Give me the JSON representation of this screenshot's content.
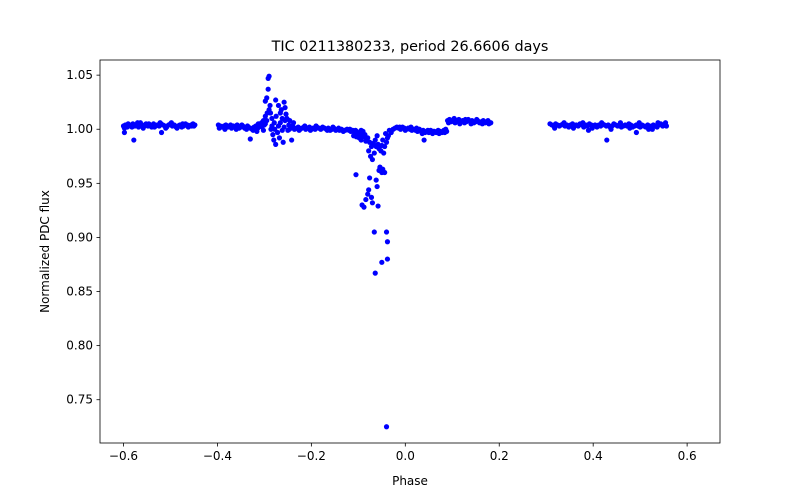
{
  "chart_data": {
    "type": "scatter",
    "title": "TIC 0211380233, period 26.6606 days",
    "xlabel": "Phase",
    "ylabel": "Normalized PDC flux",
    "xlim": [
      -0.65,
      0.67
    ],
    "ylim": [
      0.71,
      1.064
    ],
    "grid": false,
    "marker_color": "#0000ff",
    "x_ticks": [
      {
        "value": -0.6,
        "label": "−0.6"
      },
      {
        "value": -0.4,
        "label": "−0.4"
      },
      {
        "value": -0.2,
        "label": "−0.2"
      },
      {
        "value": 0.0,
        "label": "0.0"
      },
      {
        "value": 0.2,
        "label": "0.2"
      },
      {
        "value": 0.4,
        "label": "0.4"
      },
      {
        "value": 0.6,
        "label": "0.6"
      }
    ],
    "y_ticks": [
      {
        "value": 0.75,
        "label": "0.75"
      },
      {
        "value": 0.8,
        "label": "0.80"
      },
      {
        "value": 0.85,
        "label": "0.85"
      },
      {
        "value": 0.9,
        "label": "0.90"
      },
      {
        "value": 0.95,
        "label": "0.95"
      },
      {
        "value": 1.0,
        "label": "1.00"
      },
      {
        "value": 1.05,
        "label": "1.05"
      }
    ],
    "points": [
      [
        -0.6,
        1.003
      ],
      [
        -0.596,
        1.004
      ],
      [
        -0.592,
        1.002
      ],
      [
        -0.588,
        1.004
      ],
      [
        -0.584,
        1.003
      ],
      [
        -0.58,
        1.005
      ],
      [
        -0.576,
        1.003
      ],
      [
        -0.572,
        1.004
      ],
      [
        -0.568,
        1.002
      ],
      [
        -0.564,
        1.006
      ],
      [
        -0.56,
        1.004
      ],
      [
        -0.556,
        1.003
      ],
      [
        -0.552,
        1.005
      ],
      [
        -0.548,
        1.003
      ],
      [
        -0.544,
        1.004
      ],
      [
        -0.54,
        1.002
      ],
      [
        -0.536,
        1.005
      ],
      [
        -0.532,
        1.003
      ],
      [
        -0.528,
        1.004
      ],
      [
        -0.524,
        1.003
      ],
      [
        -0.52,
        1.005
      ],
      [
        -0.516,
        1.004
      ],
      [
        -0.512,
        1.003
      ],
      [
        -0.508,
        1.002
      ],
      [
        -0.504,
        1.004
      ],
      [
        -0.5,
        1.005
      ],
      [
        -0.496,
        1.003
      ],
      [
        -0.492,
        1.004
      ],
      [
        -0.488,
        1.002
      ],
      [
        -0.484,
        1.003
      ],
      [
        -0.48,
        1.004
      ],
      [
        -0.476,
        1.002
      ],
      [
        -0.472,
        1.003
      ],
      [
        -0.468,
        1.005
      ],
      [
        -0.464,
        1.004
      ],
      [
        -0.46,
        1.003
      ],
      [
        -0.456,
        1.004
      ],
      [
        -0.452,
        1.005
      ],
      [
        -0.448,
        1.004
      ],
      [
        -0.598,
        1.001
      ],
      [
        -0.59,
        1.005
      ],
      [
        -0.582,
        1.002
      ],
      [
        -0.57,
        1.006
      ],
      [
        -0.558,
        1.001
      ],
      [
        -0.546,
        1.005
      ],
      [
        -0.534,
        1.002
      ],
      [
        -0.522,
        1.006
      ],
      [
        -0.51,
        1.001
      ],
      [
        -0.498,
        1.006
      ],
      [
        -0.486,
        1.001
      ],
      [
        -0.474,
        1.005
      ],
      [
        -0.462,
        1.002
      ],
      [
        -0.45,
        1.003
      ],
      [
        -0.598,
        0.997
      ],
      [
        -0.578,
        0.99
      ],
      [
        -0.519,
        0.997
      ],
      [
        -0.455,
        1.003
      ],
      [
        -0.398,
        1.004
      ],
      [
        -0.394,
        1.003
      ],
      [
        -0.39,
        1.002
      ],
      [
        -0.386,
        1.003
      ],
      [
        -0.382,
        1.004
      ],
      [
        -0.378,
        1.002
      ],
      [
        -0.374,
        1.003
      ],
      [
        -0.37,
        1.001
      ],
      [
        -0.366,
        1.003
      ],
      [
        -0.362,
        1.002
      ],
      [
        -0.358,
        1.004
      ],
      [
        -0.354,
        1.001
      ],
      [
        -0.35,
        1.002
      ],
      [
        -0.346,
        1.003
      ],
      [
        -0.342,
        1.001
      ],
      [
        -0.338,
        1.0
      ],
      [
        -0.334,
        1.002
      ],
      [
        -0.33,
        1.001
      ],
      [
        -0.326,
        1.0
      ],
      [
        -0.322,
        1.002
      ],
      [
        -0.318,
        1.003
      ],
      [
        -0.314,
        1.001
      ],
      [
        -0.31,
        1.004
      ],
      [
        -0.306,
        1.006
      ],
      [
        -0.302,
        1.008
      ],
      [
        -0.298,
        1.012
      ],
      [
        -0.294,
        1.015
      ],
      [
        -0.29,
        1.018
      ],
      [
        -0.396,
        1.001
      ],
      [
        -0.384,
        1.0
      ],
      [
        -0.372,
        1.004
      ],
      [
        -0.36,
        1.0
      ],
      [
        -0.348,
        1.004
      ],
      [
        -0.336,
        1.003
      ],
      [
        -0.324,
        0.999
      ],
      [
        -0.313,
        1.005
      ],
      [
        -0.305,
        1.002
      ],
      [
        -0.298,
        1.005
      ],
      [
        -0.33,
        0.991
      ],
      [
        -0.316,
        0.998
      ],
      [
        -0.29,
        1.049
      ],
      [
        -0.292,
        1.047
      ],
      [
        -0.292,
        1.037
      ],
      [
        -0.295,
        1.029
      ],
      [
        -0.298,
        1.026
      ],
      [
        -0.288,
        1.022
      ],
      [
        -0.284,
        1.01
      ],
      [
        -0.286,
        1.0
      ],
      [
        -0.282,
        0.995
      ],
      [
        -0.28,
        0.99
      ],
      [
        -0.276,
        0.986
      ],
      [
        -0.272,
        0.997
      ],
      [
        -0.276,
        1.027
      ],
      [
        -0.27,
        1.022
      ],
      [
        -0.266,
        1.015
      ],
      [
        -0.262,
        1.01
      ],
      [
        -0.258,
        1.025
      ],
      [
        -0.256,
        1.02
      ],
      [
        -0.254,
        1.014
      ],
      [
        -0.266,
        1.006
      ],
      [
        -0.27,
        1.003
      ],
      [
        -0.262,
        0.999
      ],
      [
        -0.258,
        1.002
      ],
      [
        -0.252,
        1.01
      ],
      [
        -0.248,
        1.004
      ],
      [
        -0.244,
        1.001
      ],
      [
        -0.24,
        1.003
      ],
      [
        -0.236,
        1.0
      ],
      [
        -0.246,
        1.008
      ],
      [
        -0.25,
        0.999
      ],
      [
        -0.268,
        0.992
      ],
      [
        -0.278,
        1.0
      ],
      [
        -0.284,
        1.003
      ],
      [
        -0.26,
        0.988
      ],
      [
        -0.242,
        0.99
      ],
      [
        -0.287,
        1.015
      ],
      [
        -0.275,
        1.012
      ],
      [
        -0.264,
        1.018
      ],
      [
        -0.256,
        1.008
      ],
      [
        -0.247,
        1.0
      ],
      [
        -0.238,
        1.006
      ],
      [
        -0.3,
        1.004
      ],
      [
        -0.302,
        0.999
      ],
      [
        -0.295,
        1.008
      ],
      [
        -0.279,
        1.006
      ],
      [
        -0.232,
        1.001
      ],
      [
        -0.228,
        1.002
      ],
      [
        -0.224,
        1.0
      ],
      [
        -0.22,
        1.001
      ],
      [
        -0.216,
        1.002
      ],
      [
        -0.212,
        1.0
      ],
      [
        -0.208,
        1.001
      ],
      [
        -0.204,
        1.002
      ],
      [
        -0.2,
        1.0
      ],
      [
        -0.196,
        1.001
      ],
      [
        -0.192,
        1.0
      ],
      [
        -0.188,
        1.002
      ],
      [
        -0.184,
        1.001
      ],
      [
        -0.18,
        1.0
      ],
      [
        -0.176,
        1.002
      ],
      [
        -0.172,
        1.001
      ],
      [
        -0.168,
        1.0
      ],
      [
        -0.164,
        1.001
      ],
      [
        -0.16,
        0.999
      ],
      [
        -0.156,
        1.0
      ],
      [
        -0.152,
        1.001
      ],
      [
        -0.148,
        0.999
      ],
      [
        -0.144,
        1.0
      ],
      [
        -0.14,
        0.999
      ],
      [
        -0.136,
        1.0
      ],
      [
        -0.132,
        0.998
      ],
      [
        -0.128,
        0.999
      ],
      [
        -0.124,
        1.0
      ],
      [
        -0.12,
        0.999
      ],
      [
        -0.116,
        0.998
      ],
      [
        -0.112,
        0.999
      ],
      [
        -0.108,
        0.997
      ],
      [
        -0.104,
        0.998
      ],
      [
        -0.1,
        0.996
      ],
      [
        -0.096,
        0.997
      ],
      [
        -0.092,
        0.995
      ],
      [
        -0.226,
        0.999
      ],
      [
        -0.214,
        1.003
      ],
      [
        -0.202,
        0.999
      ],
      [
        -0.19,
        1.003
      ],
      [
        -0.178,
        1.001
      ],
      [
        -0.166,
        0.999
      ],
      [
        -0.154,
        1.002
      ],
      [
        -0.142,
        1.001
      ],
      [
        -0.13,
        0.999
      ],
      [
        -0.118,
        1.0
      ],
      [
        -0.106,
        0.999
      ],
      [
        -0.094,
        0.999
      ],
      [
        -0.11,
        0.994
      ],
      [
        -0.104,
        0.993
      ],
      [
        -0.098,
        0.992
      ],
      [
        -0.094,
        0.99
      ],
      [
        -0.09,
        0.998
      ],
      [
        -0.086,
        0.995
      ],
      [
        -0.084,
        0.989
      ],
      [
        -0.08,
        0.992
      ],
      [
        -0.076,
        0.988
      ],
      [
        -0.072,
        0.984
      ],
      [
        -0.078,
        0.98
      ],
      [
        -0.074,
        0.975
      ],
      [
        -0.07,
        0.972
      ],
      [
        -0.066,
        0.978
      ],
      [
        -0.064,
        0.99
      ],
      [
        -0.06,
        0.994
      ],
      [
        -0.058,
        0.986
      ],
      [
        -0.056,
        0.982
      ],
      [
        -0.052,
        0.98
      ],
      [
        -0.05,
        0.985
      ],
      [
        -0.046,
        0.978
      ],
      [
        -0.044,
        0.984
      ],
      [
        -0.04,
        0.988
      ],
      [
        -0.036,
        0.994
      ],
      [
        -0.034,
        0.999
      ],
      [
        -0.03,
        0.997
      ],
      [
        -0.026,
        1.0
      ],
      [
        -0.022,
        1.001
      ],
      [
        -0.018,
        1.002
      ],
      [
        -0.048,
        0.99
      ],
      [
        -0.038,
        0.992
      ],
      [
        -0.042,
        0.996
      ],
      [
        -0.062,
        0.984
      ],
      [
        -0.068,
        0.987
      ],
      [
        -0.082,
        0.991
      ],
      [
        -0.088,
        0.993
      ],
      [
        -0.105,
        0.958
      ],
      [
        -0.092,
        0.93
      ],
      [
        -0.088,
        0.928
      ],
      [
        -0.08,
        0.94
      ],
      [
        -0.078,
        0.944
      ],
      [
        -0.084,
        0.935
      ],
      [
        -0.07,
        0.932
      ],
      [
        -0.072,
        0.937
      ],
      [
        -0.06,
        0.947
      ],
      [
        -0.062,
        0.953
      ],
      [
        -0.056,
        0.962
      ],
      [
        -0.05,
        0.96
      ],
      [
        -0.048,
        0.963
      ],
      [
        -0.058,
        0.929
      ],
      [
        -0.066,
        0.905
      ],
      [
        -0.05,
        0.877
      ],
      [
        -0.064,
        0.867
      ],
      [
        -0.04,
        0.905
      ],
      [
        -0.038,
        0.896
      ],
      [
        -0.038,
        0.88
      ],
      [
        -0.04,
        0.725
      ],
      [
        -0.044,
        0.96
      ],
      [
        -0.054,
        0.965
      ],
      [
        -0.076,
        0.955
      ],
      [
        -0.014,
        1.001
      ],
      [
        -0.01,
        1.0
      ],
      [
        -0.006,
        1.002
      ],
      [
        -0.002,
        1.001
      ],
      [
        0.002,
        1.0
      ],
      [
        0.006,
        1.001
      ],
      [
        0.01,
        1.0
      ],
      [
        0.014,
        0.999
      ],
      [
        0.018,
        1.0
      ],
      [
        0.022,
        0.999
      ],
      [
        0.026,
        0.998
      ],
      [
        0.03,
        1.0
      ],
      [
        0.034,
        0.998
      ],
      [
        0.038,
        0.999
      ],
      [
        0.042,
        0.997
      ],
      [
        0.046,
        0.998
      ],
      [
        0.05,
        0.997
      ],
      [
        0.054,
        0.999
      ],
      [
        0.058,
        0.996
      ],
      [
        0.062,
        0.998
      ],
      [
        0.066,
        0.997
      ],
      [
        0.07,
        0.999
      ],
      [
        0.074,
        0.998
      ],
      [
        0.078,
        0.997
      ],
      [
        0.082,
        0.999
      ],
      [
        0.086,
        1.0
      ],
      [
        0.088,
        0.998
      ],
      [
        -0.012,
        1.002
      ],
      [
        0.0,
        0.999
      ],
      [
        0.012,
        1.002
      ],
      [
        0.024,
        1.001
      ],
      [
        0.036,
        0.996
      ],
      [
        0.048,
        0.999
      ],
      [
        0.06,
        0.998
      ],
      [
        0.072,
        0.996
      ],
      [
        0.084,
        0.997
      ],
      [
        0.04,
        0.99
      ],
      [
        0.09,
        1.008
      ],
      [
        0.094,
        1.009
      ],
      [
        0.098,
        1.007
      ],
      [
        0.102,
        1.008
      ],
      [
        0.106,
        1.006
      ],
      [
        0.11,
        1.008
      ],
      [
        0.114,
        1.009
      ],
      [
        0.118,
        1.007
      ],
      [
        0.122,
        1.008
      ],
      [
        0.126,
        1.006
      ],
      [
        0.13,
        1.007
      ],
      [
        0.134,
        1.009
      ],
      [
        0.138,
        1.007
      ],
      [
        0.142,
        1.008
      ],
      [
        0.146,
        1.006
      ],
      [
        0.15,
        1.007
      ],
      [
        0.154,
        1.008
      ],
      [
        0.158,
        1.006
      ],
      [
        0.162,
        1.007
      ],
      [
        0.166,
        1.008
      ],
      [
        0.17,
        1.006
      ],
      [
        0.174,
        1.007
      ],
      [
        0.178,
        1.005
      ],
      [
        0.182,
        1.006
      ],
      [
        0.092,
        1.006
      ],
      [
        0.104,
        1.01
      ],
      [
        0.116,
        1.005
      ],
      [
        0.128,
        1.009
      ],
      [
        0.14,
        1.005
      ],
      [
        0.152,
        1.009
      ],
      [
        0.164,
        1.005
      ],
      [
        0.176,
        1.008
      ],
      [
        0.308,
        1.005
      ],
      [
        0.312,
        1.004
      ],
      [
        0.316,
        1.003
      ],
      [
        0.32,
        1.005
      ],
      [
        0.324,
        1.004
      ],
      [
        0.328,
        1.003
      ],
      [
        0.332,
        1.004
      ],
      [
        0.336,
        1.005
      ],
      [
        0.34,
        1.003
      ],
      [
        0.344,
        1.004
      ],
      [
        0.348,
        1.002
      ],
      [
        0.352,
        1.004
      ],
      [
        0.356,
        1.005
      ],
      [
        0.36,
        1.003
      ],
      [
        0.364,
        1.004
      ],
      [
        0.368,
        1.003
      ],
      [
        0.372,
        1.005
      ],
      [
        0.376,
        1.004
      ],
      [
        0.38,
        1.002
      ],
      [
        0.384,
        1.004
      ],
      [
        0.388,
        1.003
      ],
      [
        0.392,
        1.005
      ],
      [
        0.396,
        1.004
      ],
      [
        0.4,
        1.003
      ],
      [
        0.404,
        1.004
      ],
      [
        0.408,
        1.002
      ],
      [
        0.412,
        1.004
      ],
      [
        0.416,
        1.003
      ],
      [
        0.42,
        1.005
      ],
      [
        0.424,
        1.004
      ],
      [
        0.428,
        1.003
      ],
      [
        0.432,
        1.004
      ],
      [
        0.436,
        1.002
      ],
      [
        0.44,
        1.003
      ],
      [
        0.444,
        1.005
      ],
      [
        0.448,
        1.004
      ],
      [
        0.452,
        1.003
      ],
      [
        0.456,
        1.004
      ],
      [
        0.46,
        1.002
      ],
      [
        0.464,
        1.003
      ],
      [
        0.468,
        1.004
      ],
      [
        0.472,
        1.003
      ],
      [
        0.476,
        1.005
      ],
      [
        0.48,
        1.004
      ],
      [
        0.484,
        1.002
      ],
      [
        0.488,
        1.003
      ],
      [
        0.492,
        1.004
      ],
      [
        0.496,
        1.003
      ],
      [
        0.5,
        1.002
      ],
      [
        0.504,
        1.004
      ],
      [
        0.508,
        1.003
      ],
      [
        0.512,
        1.002
      ],
      [
        0.516,
        1.004
      ],
      [
        0.52,
        1.003
      ],
      [
        0.524,
        1.002
      ],
      [
        0.528,
        1.004
      ],
      [
        0.532,
        1.003
      ],
      [
        0.536,
        1.002
      ],
      [
        0.54,
        1.004
      ],
      [
        0.544,
        1.005
      ],
      [
        0.548,
        1.003
      ],
      [
        0.552,
        1.004
      ],
      [
        0.556,
        1.003
      ],
      [
        0.318,
        1.001
      ],
      [
        0.338,
        1.006
      ],
      [
        0.358,
        1.001
      ],
      [
        0.378,
        1.006
      ],
      [
        0.398,
        1.001
      ],
      [
        0.418,
        1.006
      ],
      [
        0.438,
        1.0
      ],
      [
        0.458,
        1.006
      ],
      [
        0.478,
        1.001
      ],
      [
        0.498,
        1.006
      ],
      [
        0.518,
        1.0
      ],
      [
        0.538,
        1.006
      ],
      [
        0.554,
        1.006
      ],
      [
        0.429,
        0.99
      ],
      [
        0.492,
        0.997
      ],
      [
        0.39,
        0.999
      ],
      [
        0.526,
        1.0
      ]
    ]
  }
}
